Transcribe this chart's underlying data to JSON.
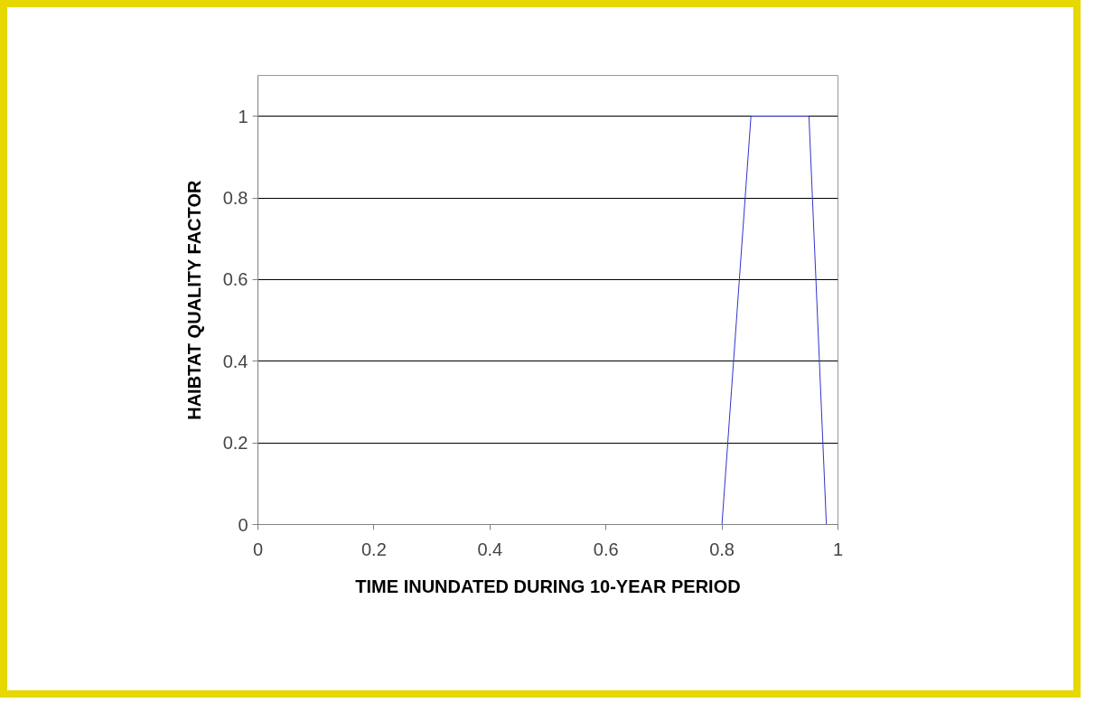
{
  "chart_data": {
    "type": "line",
    "xlabel": "TIME INUNDATED DURING 10-YEAR PERIOD",
    "ylabel": "HAIBTAT QUALITY FACTOR",
    "x": [
      0,
      0.8,
      0.85,
      0.95,
      0.98,
      1
    ],
    "series": [
      {
        "color": "#3333cc",
        "values": [
          0,
          0,
          1,
          1,
          0,
          0
        ]
      }
    ],
    "xlim": [
      0,
      1
    ],
    "xticks": [
      0,
      0.2,
      0.4,
      0.6,
      0.8,
      1
    ],
    "ylim": [
      0,
      1.1
    ],
    "yticks": [
      0,
      0.2,
      0.4,
      0.6,
      0.8,
      1
    ],
    "grid": "y"
  }
}
